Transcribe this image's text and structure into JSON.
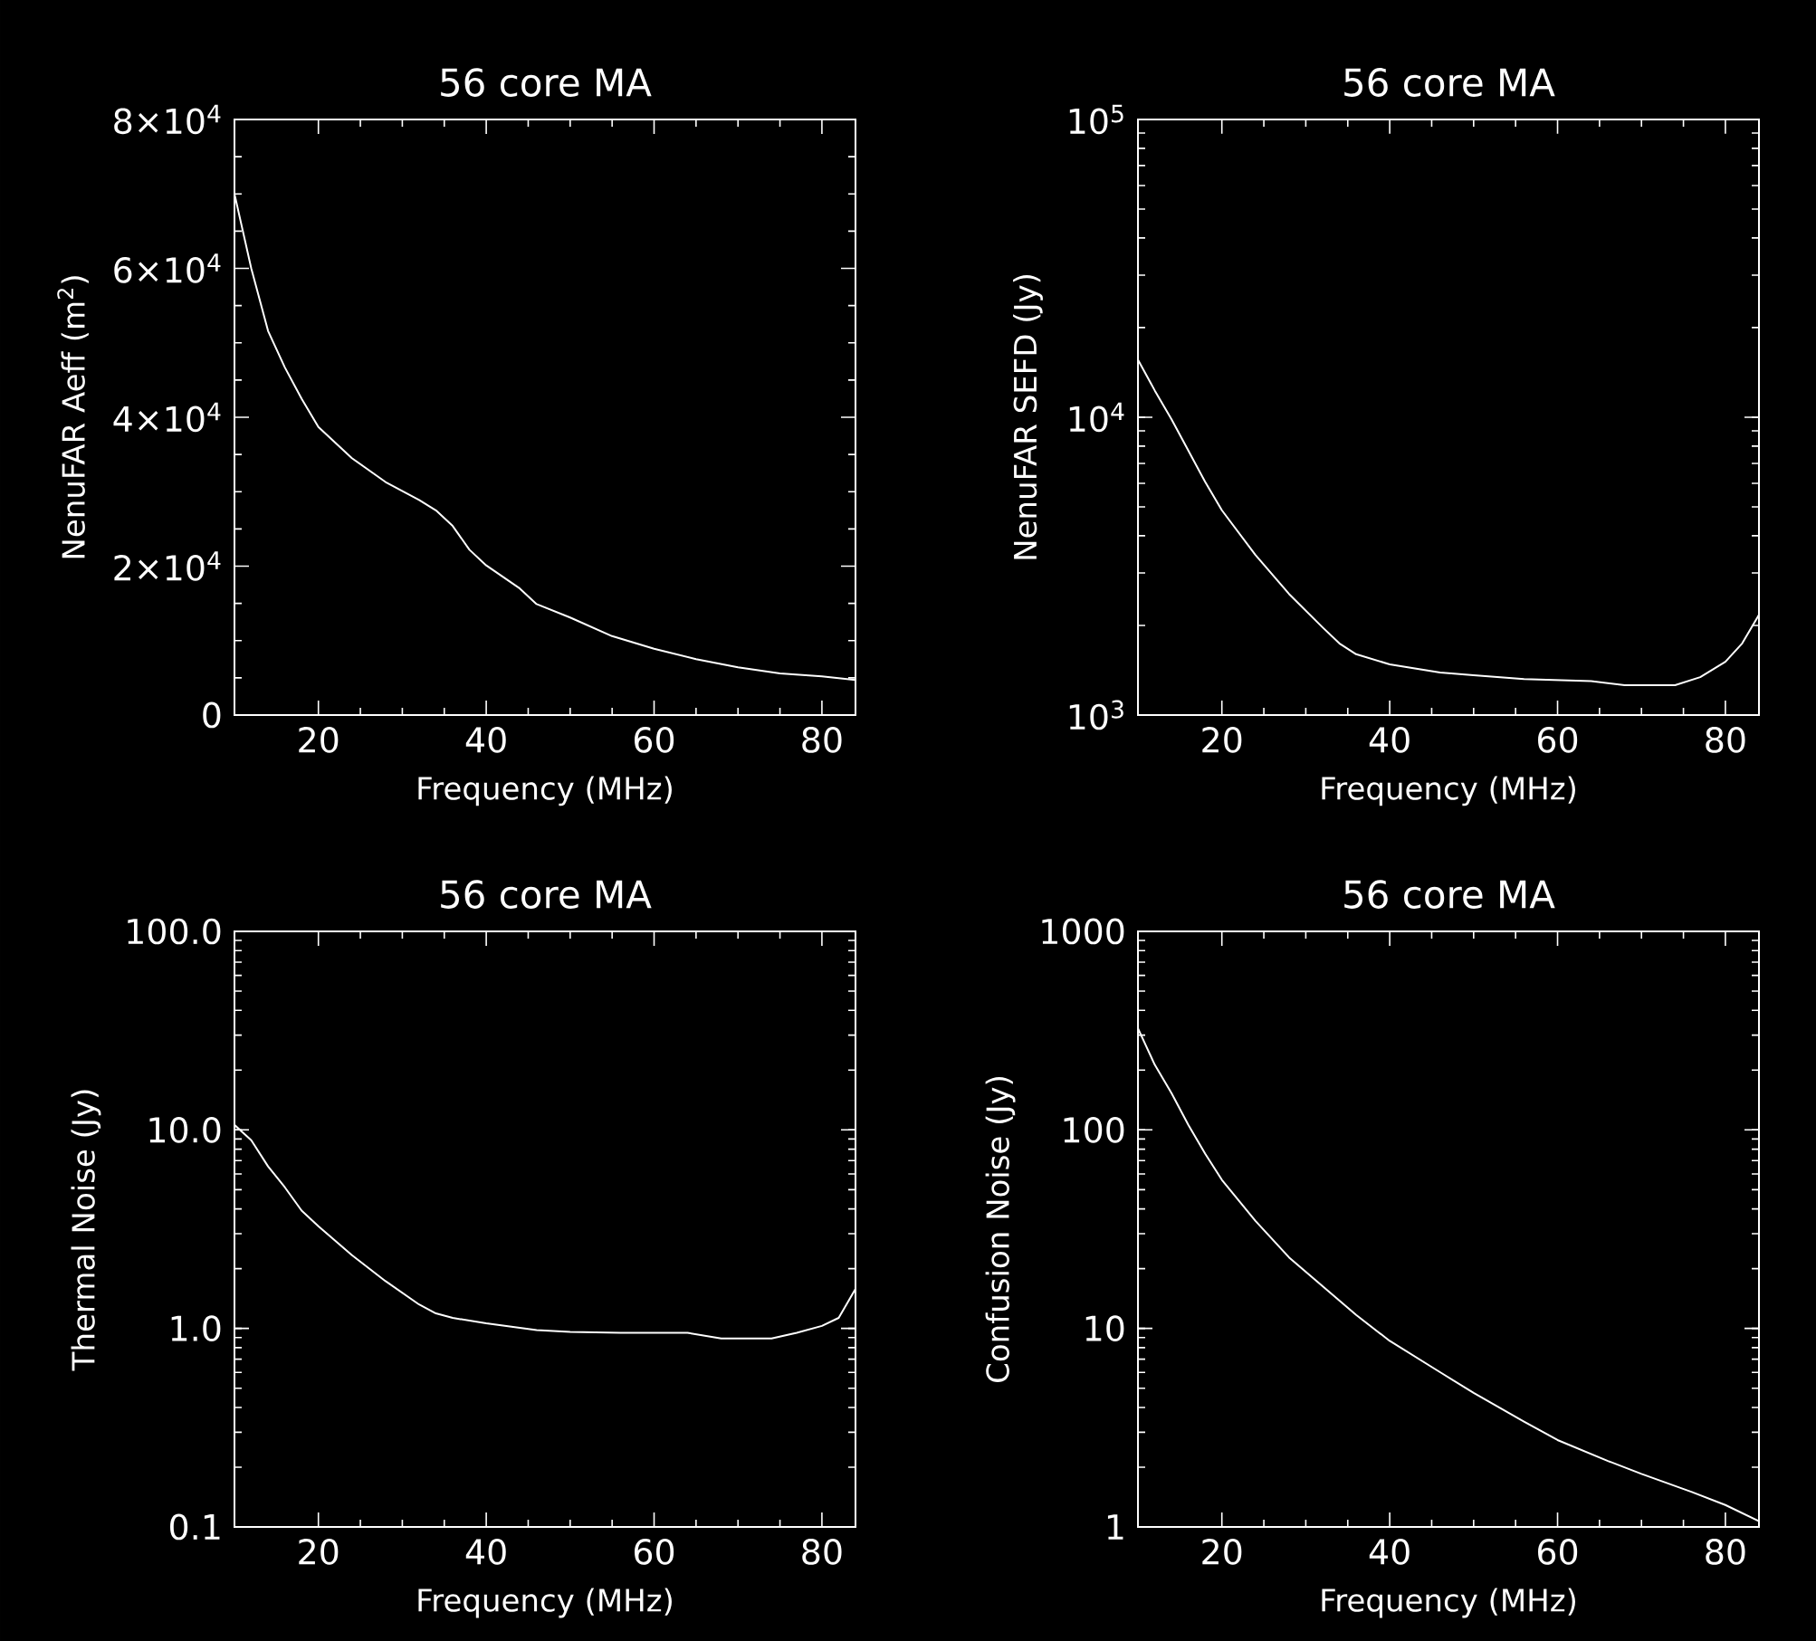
{
  "chart_data": [
    {
      "type": "line",
      "title": "56 core MA",
      "xlabel": "Frequency (MHz)",
      "ylabel": "NenuFAR Aeff (m$^{2}$)",
      "color": "#ffffff",
      "x": [
        10,
        12,
        14,
        16,
        18,
        20,
        24,
        28,
        32,
        34,
        36,
        38,
        40,
        44,
        46,
        50,
        55,
        60,
        65,
        70,
        75,
        80,
        84
      ],
      "values": [
        70000,
        60000,
        51600,
        46700,
        42500,
        38700,
        34500,
        31300,
        28900,
        27500,
        25400,
        22200,
        20100,
        17000,
        14900,
        13100,
        10600,
        8900,
        7500,
        6400,
        5600,
        5200,
        4700
      ],
      "xlim": [
        10,
        84
      ],
      "xticks": [
        20,
        40,
        60,
        80
      ],
      "ylim": [
        0,
        80000
      ],
      "yticks": [
        {
          "value": 0,
          "label": "0"
        },
        {
          "value": 20000,
          "label": "2×10$^{4}$"
        },
        {
          "value": 40000,
          "label": "4×10$^{4}$"
        },
        {
          "value": 60000,
          "label": "6×10$^{4}$"
        },
        {
          "value": 80000,
          "label": "8×10$^{4}$"
        }
      ]
    },
    {
      "type": "line",
      "title": "56 core MA",
      "xlabel": "Frequency (MHz)",
      "ylabel": "NenuFAR SEFD (Jy)",
      "color": "#ffffff",
      "log": true,
      "x": [
        10,
        12,
        14,
        16,
        18,
        20,
        24,
        28,
        32,
        34,
        36,
        40,
        46,
        50,
        56,
        64,
        68,
        74,
        77,
        80,
        82,
        84
      ],
      "values": [
        15600,
        12300,
        9840,
        7730,
        6070,
        4870,
        3450,
        2550,
        1970,
        1740,
        1600,
        1480,
        1390,
        1360,
        1320,
        1300,
        1260,
        1260,
        1340,
        1510,
        1740,
        2170
      ],
      "xlim": [
        10,
        84
      ],
      "xticks": [
        20,
        40,
        60,
        80
      ],
      "ylim": [
        1000,
        100000
      ],
      "yticks": [
        {
          "value": 1000,
          "label": "10$^{3}$"
        },
        {
          "value": 10000,
          "label": "10$^{4}$"
        },
        {
          "value": 100000,
          "label": "10$^{5}$"
        }
      ]
    },
    {
      "type": "line",
      "title": "56 core MA",
      "xlabel": "Frequency (MHz)",
      "ylabel": "Thermal Noise (Jy)",
      "color": "#ffffff",
      "log": true,
      "x": [
        10,
        12,
        14,
        16,
        18,
        20,
        24,
        28,
        32,
        34,
        36,
        40,
        46,
        50,
        56,
        64,
        68,
        74,
        77,
        80,
        82,
        84
      ],
      "values": [
        10.6,
        8.87,
        6.55,
        5.14,
        3.92,
        3.27,
        2.34,
        1.73,
        1.32,
        1.19,
        1.13,
        1.06,
        0.98,
        0.96,
        0.95,
        0.95,
        0.89,
        0.89,
        0.95,
        1.03,
        1.13,
        1.58
      ],
      "xlim": [
        10,
        84
      ],
      "xticks": [
        20,
        40,
        60,
        80
      ],
      "ylim": [
        0.1,
        100
      ],
      "yticks": [
        {
          "value": 0.1,
          "label": "0.1"
        },
        {
          "value": 1,
          "label": "1.0"
        },
        {
          "value": 10,
          "label": "10.0"
        },
        {
          "value": 100,
          "label": "100.0"
        }
      ]
    },
    {
      "type": "line",
      "title": "56 core MA",
      "xlabel": "Frequency (MHz)",
      "ylabel": "Confusion Noise (Jy)",
      "color": "#ffffff",
      "log": true,
      "x": [
        10,
        12,
        14,
        16,
        18,
        20,
        24,
        28,
        32,
        36,
        40,
        46,
        50,
        56,
        60,
        66,
        70,
        76,
        80,
        84
      ],
      "values": [
        325,
        213,
        153,
        106,
        76,
        56,
        34.8,
        22.8,
        16.3,
        11.7,
        8.65,
        6.02,
        4.73,
        3.39,
        2.74,
        2.15,
        1.85,
        1.5,
        1.29,
        1.07
      ],
      "xlim": [
        10,
        84
      ],
      "xticks": [
        20,
        40,
        60,
        80
      ],
      "ylim": [
        1,
        1000
      ],
      "yticks": [
        1,
        10,
        100,
        1000
      ]
    }
  ]
}
